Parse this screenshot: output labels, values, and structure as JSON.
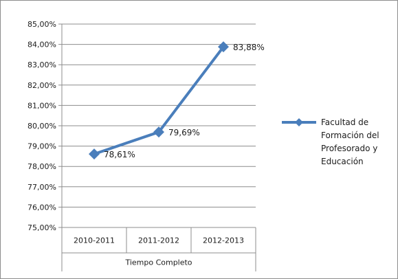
{
  "chart_data": {
    "type": "line",
    "categories": [
      "2010-2011",
      "2011-2012",
      "2012-2013"
    ],
    "category_group": "Tiempo Completo",
    "series": [
      {
        "name": "Facultad de Formación del Profesorado y Educación",
        "legend_lines": [
          "Facultad de",
          "Formación del",
          "Profesorado y",
          "Educación"
        ],
        "values": [
          78.61,
          79.69,
          83.88
        ],
        "data_labels": [
          "78,61%",
          "79,69%",
          "83,88%"
        ],
        "color": "#4a7ebb"
      }
    ],
    "ylim": [
      75,
      85
    ],
    "yticks": [
      75,
      76,
      77,
      78,
      79,
      80,
      81,
      82,
      83,
      84,
      85
    ],
    "ytick_labels": [
      "75,00%",
      "76,00%",
      "77,00%",
      "78,00%",
      "79,00%",
      "80,00%",
      "81,00%",
      "82,00%",
      "83,00%",
      "84,00%",
      "85,00%"
    ],
    "grid": true,
    "legend_position": "right",
    "title": "",
    "xlabel": "",
    "ylabel": ""
  }
}
